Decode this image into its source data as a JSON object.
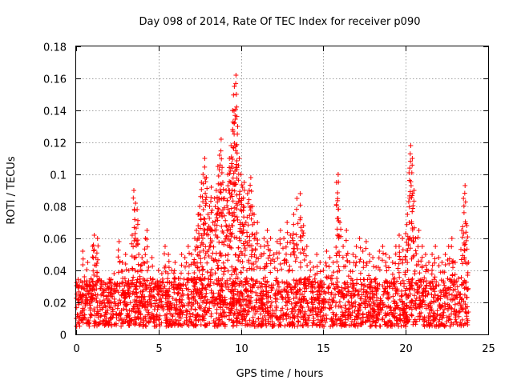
{
  "chart_data": {
    "type": "scatter",
    "title": "Day 098 of 2014, Rate Of TEC Index for receiver p090",
    "xlabel": "GPS time / hours",
    "ylabel": "ROTI / TECUs",
    "xlim": [
      0,
      25
    ],
    "ylim": [
      0,
      0.18
    ],
    "grid": true,
    "xticks": [
      0,
      5,
      10,
      15,
      20,
      25
    ],
    "xtick_labels": [
      "0",
      "5",
      "10",
      "15",
      "20",
      "25"
    ],
    "yticks": [
      0,
      0.02,
      0.04,
      0.06,
      0.08,
      0.1,
      0.12,
      0.14,
      0.16,
      0.18
    ],
    "ytick_labels": [
      "0",
      "0.02",
      "0.04",
      "0.06",
      "0.08",
      "0.1",
      "0.12",
      "0.14",
      "0.16",
      "0.18"
    ],
    "marker": "+",
    "color": "#ff0000",
    "series": [
      {
        "name": "ROTI",
        "x": [
          0.0,
          0.2,
          0.4,
          0.5,
          0.7,
          0.9,
          1.0,
          1.1,
          1.2,
          1.3,
          1.5,
          1.7,
          1.9,
          2.1,
          2.3,
          2.5,
          2.6,
          2.8,
          3.0,
          3.2,
          3.4,
          3.5,
          3.6,
          3.7,
          3.8,
          4.0,
          4.2,
          4.3,
          4.4,
          4.5,
          4.6,
          4.8,
          5.0,
          5.2,
          5.4,
          5.6,
          5.8,
          6.0,
          6.2,
          6.4,
          6.6,
          6.8,
          7.0,
          7.2,
          7.3,
          7.4,
          7.5,
          7.6,
          7.7,
          7.8,
          7.9,
          8.0,
          8.1,
          8.2,
          8.3,
          8.4,
          8.5,
          8.6,
          8.7,
          8.8,
          8.9,
          9.0,
          9.1,
          9.2,
          9.3,
          9.4,
          9.5,
          9.6,
          9.7,
          9.8,
          9.9,
          10.0,
          10.1,
          10.2,
          10.3,
          10.4,
          10.5,
          10.6,
          10.7,
          10.8,
          10.9,
          11.0,
          11.2,
          11.4,
          11.6,
          11.8,
          12.0,
          12.2,
          12.4,
          12.6,
          12.8,
          13.0,
          13.2,
          13.4,
          13.6,
          13.8,
          14.0,
          14.2,
          14.4,
          14.6,
          14.8,
          15.0,
          15.2,
          15.4,
          15.6,
          15.8,
          15.9,
          16.0,
          16.2,
          16.4,
          16.6,
          16.8,
          17.0,
          17.2,
          17.4,
          17.6,
          17.8,
          18.0,
          18.2,
          18.4,
          18.6,
          18.8,
          19.0,
          19.2,
          19.4,
          19.6,
          19.8,
          20.0,
          20.1,
          20.2,
          20.3,
          20.4,
          20.5,
          20.6,
          20.8,
          21.0,
          21.2,
          21.4,
          21.6,
          21.8,
          22.0,
          22.2,
          22.4,
          22.6,
          22.8,
          23.0,
          23.2,
          23.4,
          23.5,
          23.6,
          23.7,
          23.8
        ],
        "y": [
          0.01,
          0.024,
          0.052,
          0.036,
          0.045,
          0.03,
          0.055,
          0.062,
          0.048,
          0.06,
          0.032,
          0.028,
          0.03,
          0.034,
          0.038,
          0.032,
          0.058,
          0.045,
          0.05,
          0.04,
          0.062,
          0.09,
          0.082,
          0.078,
          0.05,
          0.048,
          0.06,
          0.065,
          0.042,
          0.035,
          0.048,
          0.03,
          0.04,
          0.038,
          0.055,
          0.05,
          0.04,
          0.045,
          0.035,
          0.05,
          0.048,
          0.055,
          0.05,
          0.06,
          0.065,
          0.075,
          0.08,
          0.095,
          0.1,
          0.11,
          0.098,
          0.075,
          0.08,
          0.092,
          0.07,
          0.085,
          0.09,
          0.105,
          0.112,
          0.122,
          0.095,
          0.085,
          0.09,
          0.1,
          0.11,
          0.118,
          0.14,
          0.155,
          0.162,
          0.13,
          0.11,
          0.1,
          0.092,
          0.095,
          0.07,
          0.088,
          0.09,
          0.098,
          0.08,
          0.075,
          0.06,
          0.07,
          0.055,
          0.06,
          0.065,
          0.06,
          0.05,
          0.058,
          0.065,
          0.06,
          0.07,
          0.062,
          0.075,
          0.085,
          0.088,
          0.068,
          0.055,
          0.045,
          0.042,
          0.05,
          0.045,
          0.04,
          0.052,
          0.048,
          0.045,
          0.095,
          0.1,
          0.07,
          0.055,
          0.065,
          0.045,
          0.05,
          0.055,
          0.06,
          0.052,
          0.058,
          0.05,
          0.048,
          0.042,
          0.052,
          0.055,
          0.05,
          0.048,
          0.045,
          0.055,
          0.062,
          0.06,
          0.063,
          0.075,
          0.101,
          0.118,
          0.11,
          0.09,
          0.06,
          0.065,
          0.055,
          0.05,
          0.045,
          0.05,
          0.055,
          0.048,
          0.045,
          0.05,
          0.055,
          0.06,
          0.045,
          0.035,
          0.065,
          0.085,
          0.093,
          0.068,
          0.045
        ]
      }
    ],
    "baseline_band": {
      "low": 0.005,
      "high": 0.035,
      "note": "dense red + markers fill this range across the whole day"
    }
  }
}
